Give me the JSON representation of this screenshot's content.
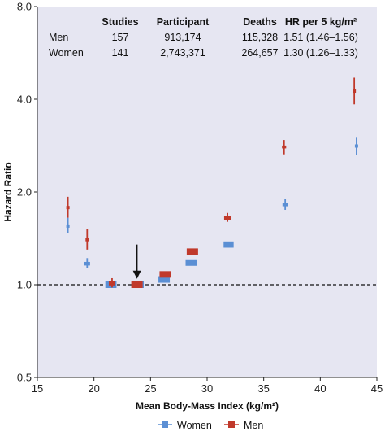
{
  "chart_data": {
    "type": "scatter",
    "title": "",
    "xlabel": "Mean Body-Mass Index (kg/m²)",
    "ylabel": "Hazard Ratio",
    "xlim": [
      15,
      45
    ],
    "ylim": [
      0.5,
      8.0
    ],
    "y_scale": "log",
    "x_ticks": [
      15,
      20,
      25,
      30,
      35,
      40,
      45
    ],
    "y_ticks": [
      {
        "value": 0.5,
        "label": "0.5"
      },
      {
        "value": 1.0,
        "label": "1.0"
      },
      {
        "value": 2.0,
        "label": "2.0"
      },
      {
        "value": 4.0,
        "label": "4.0"
      },
      {
        "value": 8.0,
        "label": "8.0"
      }
    ],
    "reference_line": {
      "y": 1.0,
      "style": "dashed"
    },
    "grid": false,
    "legend_position": "bottom",
    "annotation": {
      "type": "arrow",
      "x": 23.8,
      "y_from": 1.35,
      "y_to": 1.02
    },
    "series": [
      {
        "name": "Women",
        "color": "#5b8fd4",
        "points": [
          {
            "x": 17.7,
            "y": 1.55,
            "lo": 1.47,
            "hi": 1.65
          },
          {
            "x": 19.4,
            "y": 1.17,
            "lo": 1.13,
            "hi": 1.22
          },
          {
            "x": 21.5,
            "y": 1.0,
            "lo": 0.98,
            "hi": 1.02
          },
          {
            "x": 23.9,
            "y": 1.0,
            "lo": 0.99,
            "hi": 1.01
          },
          {
            "x": 26.2,
            "y": 1.04,
            "lo": 1.02,
            "hi": 1.06
          },
          {
            "x": 28.6,
            "y": 1.18,
            "lo": 1.16,
            "hi": 1.2
          },
          {
            "x": 31.9,
            "y": 1.35,
            "lo": 1.32,
            "hi": 1.38
          },
          {
            "x": 36.9,
            "y": 1.82,
            "lo": 1.75,
            "hi": 1.9
          },
          {
            "x": 43.2,
            "y": 2.82,
            "lo": 2.64,
            "hi": 3.0
          }
        ]
      },
      {
        "name": "Men",
        "color": "#c0392b",
        "points": [
          {
            "x": 17.7,
            "y": 1.78,
            "lo": 1.65,
            "hi": 1.93
          },
          {
            "x": 19.4,
            "y": 1.4,
            "lo": 1.3,
            "hi": 1.52
          },
          {
            "x": 21.6,
            "y": 1.01,
            "lo": 0.98,
            "hi": 1.05
          },
          {
            "x": 23.8,
            "y": 1.0,
            "lo": 0.99,
            "hi": 1.01
          },
          {
            "x": 26.3,
            "y": 1.08,
            "lo": 1.06,
            "hi": 1.1
          },
          {
            "x": 28.7,
            "y": 1.28,
            "lo": 1.26,
            "hi": 1.31
          },
          {
            "x": 31.8,
            "y": 1.65,
            "lo": 1.6,
            "hi": 1.71
          },
          {
            "x": 36.8,
            "y": 2.8,
            "lo": 2.65,
            "hi": 2.95
          },
          {
            "x": 43.0,
            "y": 4.25,
            "lo": 3.85,
            "hi": 4.7
          }
        ]
      }
    ],
    "table": {
      "headers": [
        "",
        "Studies",
        "Participant",
        "Deaths",
        "HR per 5 kg/m²"
      ],
      "rows": [
        [
          "Men",
          "157",
          "913,174",
          "115,328",
          "1.51 (1.46–1.56)"
        ],
        [
          "Women",
          "141",
          "2,743,371",
          "264,657",
          "1.30 (1.26–1.33)"
        ]
      ]
    }
  }
}
